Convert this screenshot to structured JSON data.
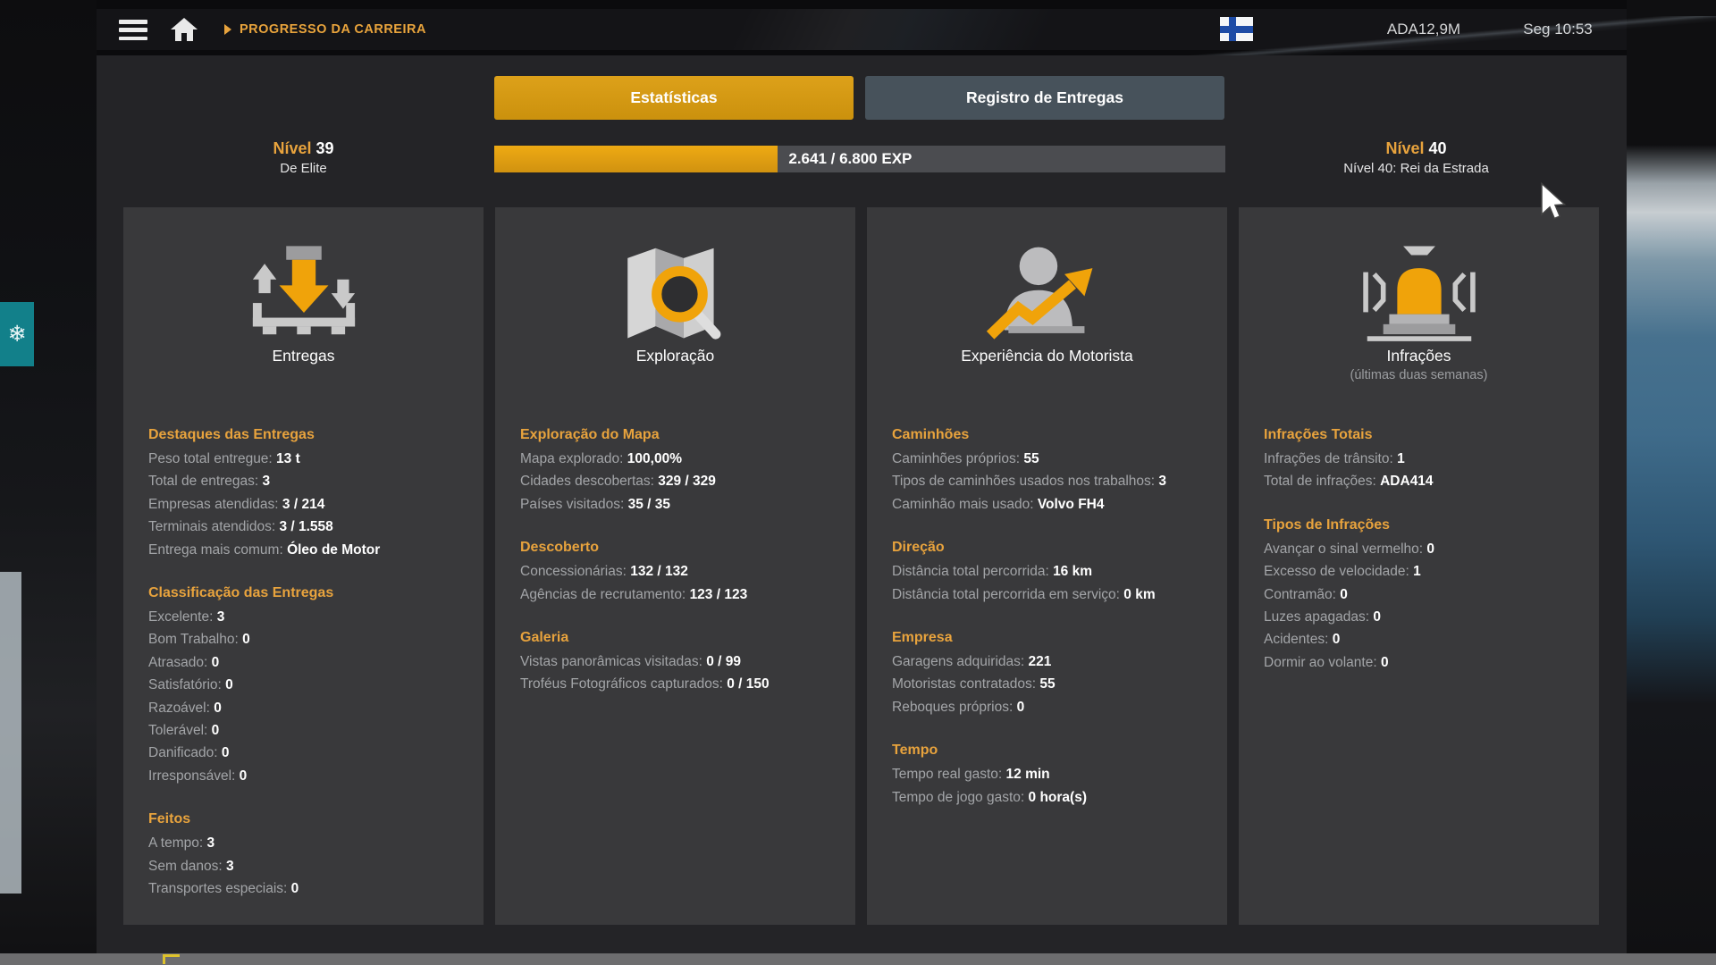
{
  "topbar": {
    "breadcrumb": "PROGRESSO DA CARREIRA",
    "money": "ADA12,9M",
    "time": "Seg 10:53",
    "flag": "finland-flag"
  },
  "tabs": [
    {
      "label": "Estatísticas",
      "active": true
    },
    {
      "label": "Registro de Entregas",
      "active": false
    }
  ],
  "level": {
    "current_label": "Nível",
    "current_value": "39",
    "current_subtitle": "De Elite",
    "exp_text": "2.641 / 6.800 EXP",
    "exp_current": 2641,
    "exp_needed": 6800,
    "exp_percent": 38.8,
    "next_label": "Nível",
    "next_value": "40",
    "next_subtitle": "Nível 40: Rei da Estrada"
  },
  "colors": {
    "accent_orange": "#e8a33d",
    "tab_active_gold": "#d09410",
    "tab_inactive_slate": "#47525b",
    "panel_bg": "#242427",
    "column_bg": "#39393b",
    "exp_fill": "#e0a012"
  },
  "columns": [
    {
      "title": "Entregas",
      "subtitle": "",
      "icon": "cargo",
      "sections": [
        {
          "header": "Destaques das Entregas",
          "stats": [
            {
              "label": "Peso total entregue:",
              "value": "13 t"
            },
            {
              "label": "Total de entregas:",
              "value": "3"
            },
            {
              "label": "Empresas atendidas:",
              "value": "3 / 214"
            },
            {
              "label": "Terminais atendidos:",
              "value": "3 / 1.558"
            },
            {
              "label": "Entrega mais comum:",
              "value": "Óleo de Motor"
            }
          ]
        },
        {
          "header": "Classificação das Entregas",
          "stats": [
            {
              "label": "Excelente:",
              "value": "3"
            },
            {
              "label": "Bom Trabalho:",
              "value": "0"
            },
            {
              "label": "Atrasado:",
              "value": "0"
            },
            {
              "label": "Satisfatório:",
              "value": "0"
            },
            {
              "label": "Razoável:",
              "value": "0"
            },
            {
              "label": "Tolerável:",
              "value": "0"
            },
            {
              "label": "Danificado:",
              "value": "0"
            },
            {
              "label": "Irresponsável:",
              "value": "0"
            }
          ]
        },
        {
          "header": "Feitos",
          "stats": [
            {
              "label": "A tempo:",
              "value": "3"
            },
            {
              "label": "Sem danos:",
              "value": "3"
            },
            {
              "label": "Transportes especiais:",
              "value": "0"
            }
          ]
        }
      ]
    },
    {
      "title": "Exploração",
      "subtitle": "",
      "icon": "map",
      "sections": [
        {
          "header": "Exploração do Mapa",
          "stats": [
            {
              "label": "Mapa explorado:",
              "value": "100,00%"
            },
            {
              "label": "Cidades descobertas:",
              "value": "329 / 329"
            },
            {
              "label": "Países visitados:",
              "value": "35 / 35"
            }
          ]
        },
        {
          "header": "Descoberto",
          "stats": [
            {
              "label": "Concessionárias:",
              "value": "132 / 132"
            },
            {
              "label": "Agências de recrutamento:",
              "value": "123 / 123"
            }
          ]
        },
        {
          "header": "Galeria",
          "stats": [
            {
              "label": "Vistas panorâmicas visitadas:",
              "value": "0 / 99"
            },
            {
              "label": "Troféus Fotográficos capturados:",
              "value": "0 / 150"
            }
          ]
        }
      ]
    },
    {
      "title": "Experiência do Motorista",
      "subtitle": "",
      "icon": "driver",
      "sections": [
        {
          "header": "Caminhões",
          "stats": [
            {
              "label": "Caminhões próprios:",
              "value": "55"
            },
            {
              "label": "Tipos de caminhões usados nos trabalhos:",
              "value": "3"
            },
            {
              "label": "Caminhão mais usado:",
              "value": "Volvo FH4"
            }
          ]
        },
        {
          "header": "Direção",
          "stats": [
            {
              "label": "Distância total percorrida:",
              "value": "16 km"
            },
            {
              "label": "Distância total percorrida em serviço:",
              "value": "0 km"
            }
          ]
        },
        {
          "header": "Empresa",
          "stats": [
            {
              "label": "Garagens adquiridas:",
              "value": "221"
            },
            {
              "label": "Motoristas contratados:",
              "value": "55"
            },
            {
              "label": "Reboques próprios:",
              "value": "0"
            }
          ]
        },
        {
          "header": "Tempo",
          "stats": [
            {
              "label": "Tempo real gasto:",
              "value": "12 min"
            },
            {
              "label": "Tempo de jogo gasto:",
              "value": "0 hora(s)"
            }
          ]
        }
      ]
    },
    {
      "title": "Infrações",
      "subtitle": "(últimas duas semanas)",
      "icon": "siren",
      "sections": [
        {
          "header": "Infrações Totais",
          "stats": [
            {
              "label": "Infrações de trânsito:",
              "value": "1"
            },
            {
              "label": "Total de infrações:",
              "value": "ADA414"
            }
          ]
        },
        {
          "header": "Tipos de Infrações",
          "stats": [
            {
              "label": "Avançar o sinal vermelho:",
              "value": "0"
            },
            {
              "label": "Excesso de velocidade:",
              "value": "1"
            },
            {
              "label": "Contramão:",
              "value": "0"
            },
            {
              "label": "Luzes apagadas:",
              "value": "0"
            },
            {
              "label": "Acidentes:",
              "value": "0"
            },
            {
              "label": "Dormir ao volante:",
              "value": "0"
            }
          ]
        }
      ]
    }
  ]
}
